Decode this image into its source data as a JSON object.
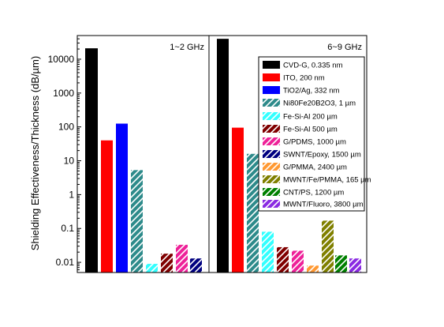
{
  "chart_data": {
    "type": "bar",
    "scale": "log",
    "ylim": [
      0.005,
      50000
    ],
    "yticks": [
      {
        "value": 0.01,
        "label": "0.01"
      },
      {
        "value": 0.1,
        "label": "0.1"
      },
      {
        "value": 1,
        "label": "1"
      },
      {
        "value": 10,
        "label": "10"
      },
      {
        "value": 100,
        "label": "100"
      },
      {
        "value": 1000,
        "label": "1000"
      },
      {
        "value": 10000,
        "label": "10000"
      }
    ],
    "ylabel": "Shielding Effectiveness/Thickness (dB/µm)",
    "grid": false,
    "legend_position": "right, inside 6~9 GHz panel",
    "panels": [
      {
        "label": "1~2 GHz",
        "bars": [
          {
            "series": 0,
            "value": 21000
          },
          {
            "series": 1,
            "value": 40
          },
          {
            "series": 2,
            "value": 125
          },
          {
            "series": 3,
            "value": 5.3
          },
          {
            "series": 4,
            "value": 0.009
          },
          {
            "series": 5,
            "value": 0.018
          },
          {
            "series": 6,
            "value": 0.033
          },
          {
            "series": 7,
            "value": 0.013
          }
        ]
      },
      {
        "label": "6~9 GHz",
        "bars": [
          {
            "series": 0,
            "value": 40000
          },
          {
            "series": 1,
            "value": 95
          },
          {
            "series": 3,
            "value": 16
          },
          {
            "series": 4,
            "value": 0.08
          },
          {
            "series": 5,
            "value": 0.028
          },
          {
            "series": 6,
            "value": 0.022
          },
          {
            "series": 8,
            "value": 0.008
          },
          {
            "series": 9,
            "value": 0.17
          },
          {
            "series": 10,
            "value": 0.016
          },
          {
            "series": 11,
            "value": 0.013
          }
        ]
      }
    ],
    "series": [
      {
        "name": "CVD-G, 0.335 nm",
        "color": "#000000",
        "pattern": "solid"
      },
      {
        "name": "ITO, 200 nm",
        "color": "#ff0000",
        "pattern": "solid"
      },
      {
        "name": "TiO2/Ag, 332 nm",
        "color": "#0000ff",
        "pattern": "solid"
      },
      {
        "name": "Ni80Fe20B2O3, 1 µm",
        "color": "#2e8b8b",
        "pattern": "hatch"
      },
      {
        "name": "Fe-Si-Al 200 µm",
        "color": "#33ffff",
        "pattern": "hatch"
      },
      {
        "name": "Fe-Si-Al 500 µm",
        "color": "#800000",
        "pattern": "hatch"
      },
      {
        "name": "G/PDMS, 1000 µm",
        "color": "#ee2299",
        "pattern": "hatch"
      },
      {
        "name": "SWNT/Epoxy, 1500 µm",
        "color": "#000080",
        "pattern": "hatch"
      },
      {
        "name": "G/PMMA, 2400 µm",
        "color": "#ff9933",
        "pattern": "hatch"
      },
      {
        "name": "MWNT/Fe/PMMA, 165 µm",
        "color": "#808000",
        "pattern": "hatch"
      },
      {
        "name": "CNT/PS, 1200 µm",
        "color": "#008000",
        "pattern": "hatch"
      },
      {
        "name": "MWNT/Fluoro, 3800 µm",
        "color": "#8a2be2",
        "pattern": "hatch"
      }
    ]
  }
}
